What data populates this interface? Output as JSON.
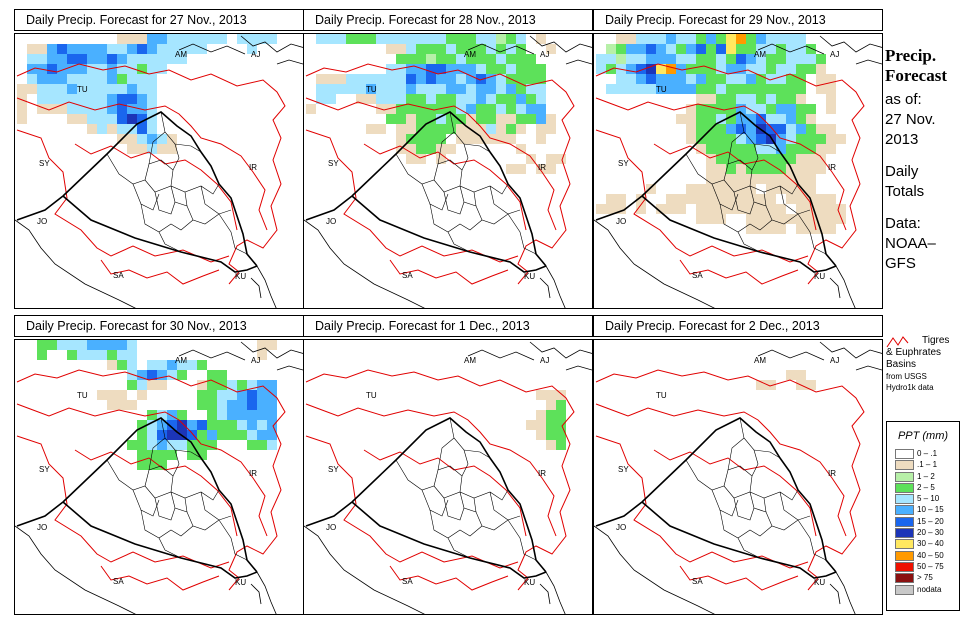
{
  "panels": [
    {
      "title": "Daily Precip. Forecast for  27 Nov., 2013",
      "day": "d27"
    },
    {
      "title": "Daily Precip. Forecast for  28 Nov., 2013",
      "day": "d28"
    },
    {
      "title": "Daily Precip. Forecast for  29 Nov., 2013",
      "day": "d29"
    },
    {
      "title": "Daily Precip. Forecast for  30 Nov., 2013",
      "day": "d30"
    },
    {
      "title": "Daily Precip. Forecast for  1 Dec., 2013",
      "day": "d01"
    },
    {
      "title": "Daily Precip. Forecast for  2 Dec., 2013",
      "day": "d02"
    }
  ],
  "map_labels": {
    "am": "AM",
    "aj": "AJ",
    "tu": "TU",
    "sy": "SY",
    "ir": "IR",
    "jo": "JO",
    "sa": "SA",
    "ku": "KU"
  },
  "side": {
    "title_line1": "Precip.",
    "title_line2": "Forecast",
    "asof": "as of:",
    "date_line1": "27 Nov.",
    "date_line2": "2013",
    "daily1": "Daily",
    "daily2": "Totals",
    "data1": "Data:",
    "data2": "NOAA–",
    "data3": "GFS"
  },
  "basin_note": {
    "line1": "Tigres",
    "line2": "& Euphrates",
    "line3": "Basins",
    "line4": "from USGS",
    "line5": "Hydro1k data"
  },
  "legend": {
    "title": "PPT (mm)",
    "items": [
      {
        "label": "0 – .1",
        "color": "#ffffff"
      },
      {
        "label": ".1 – 1",
        "color": "#eedcc0"
      },
      {
        "label": "1 – 2",
        "color": "#b7f0a8"
      },
      {
        "label": "2 – 5",
        "color": "#5de15a"
      },
      {
        "label": "5 – 10",
        "color": "#a6e6ff"
      },
      {
        "label": "10 – 15",
        "color": "#4ab0ff"
      },
      {
        "label": "15 – 20",
        "color": "#1a66ee"
      },
      {
        "label": "20 – 30",
        "color": "#1c35b8"
      },
      {
        "label": "30 – 40",
        "color": "#ffe860"
      },
      {
        "label": "40 – 50",
        "color": "#ff9a00"
      },
      {
        "label": "50 – 75",
        "color": "#ee1000"
      },
      {
        "label": "> 75",
        "color": "#8a1010"
      },
      {
        "label": "nodata",
        "color": "#c8c8c8"
      }
    ]
  }
}
